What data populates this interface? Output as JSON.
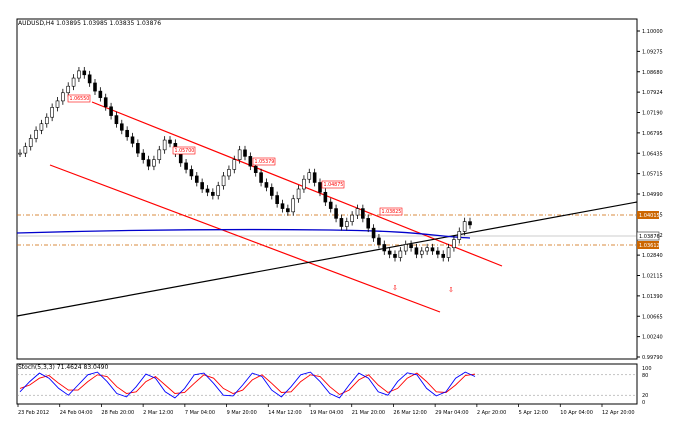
{
  "header": {
    "symbol_line": "AUDUSD,H4 1.03895 1.03985 1.03835 1.03876"
  },
  "colors": {
    "background": "#ffffff",
    "frame": "#000000",
    "channel": "#ff0000",
    "trendline": "#000000",
    "moving_average": "#0000cc",
    "level_line": "#cc6600",
    "candle_bull": "#ffffff",
    "candle_bear": "#000000",
    "stoch_main": "#0000ff",
    "stoch_signal": "#ff0000",
    "label_border": "#ff0000",
    "current_price_bg": "#cc6600"
  },
  "price_axis": {
    "ticks": [
      "1.10000",
      "1.09275",
      "1.08680",
      "1.07924",
      "1.07190",
      "1.06795",
      "1.06435",
      "1.05715",
      "1.04990",
      "1.04265",
      "1.03542",
      "1.02840",
      "1.02115",
      "1.01390",
      "1.00665",
      "1.00240",
      "0.99790"
    ],
    "highlighted": [
      "1.04015",
      "1.03876",
      "1.03612"
    ]
  },
  "annotations": [
    {
      "price_label": "1.06550"
    },
    {
      "price_label": "1.05700"
    },
    {
      "price_label": "1.05379"
    },
    {
      "price_label": "1.04875"
    },
    {
      "price_label": "1.03825"
    }
  ],
  "arrows": [
    {
      "glyph": "⇩"
    },
    {
      "glyph": "⇩"
    }
  ],
  "oscillator": {
    "label": "Stoch(5,3,3) 71.4624 83.0490",
    "levels": [
      "100",
      "80",
      "20",
      "0"
    ]
  },
  "time_axis": {
    "ticks": [
      "23 Feb 2012",
      "24 Feb 04:00",
      "28 Feb 20:00",
      "2 Mar 12:00",
      "7 Mar 04:00",
      "9 Mar 20:00",
      "14 Mar 12:00",
      "19 Mar 04:00",
      "21 Mar 20:00",
      "26 Mar 12:00",
      "29 Mar 04:00",
      "2 Apr 20:00",
      "5 Apr 12:00",
      "10 Apr 04:00",
      "12 Apr 20:00"
    ]
  },
  "chart_data": {
    "type": "candlestick",
    "symbol": "AUDUSD",
    "timeframe": "H4",
    "ylim": [
      0.9979,
      1.1021
    ],
    "close_trace": [
      1.061,
      1.063,
      1.0655,
      1.068,
      1.07,
      1.072,
      1.075,
      1.077,
      1.0795,
      1.0815,
      1.084,
      1.0862,
      1.085,
      1.0825,
      1.08,
      1.078,
      1.0752,
      1.0725,
      1.07,
      1.068,
      1.066,
      1.064,
      1.061,
      1.059,
      1.057,
      1.059,
      1.062,
      1.065,
      1.064,
      1.061,
      1.058,
      1.056,
      1.054,
      1.052,
      1.05,
      1.049,
      1.048,
      1.051,
      1.054,
      1.056,
      1.059,
      1.062,
      1.06,
      1.057,
      1.055,
      1.052,
      1.0505,
      1.048,
      1.0455,
      1.044,
      1.043,
      1.047,
      1.05,
      1.053,
      1.055,
      1.052,
      1.049,
      1.046,
      1.044,
      1.041,
      1.0385,
      1.04,
      1.042,
      1.044,
      1.041,
      1.038,
      1.035,
      1.033,
      1.031,
      1.03,
      1.029,
      1.031,
      1.033,
      1.032,
      1.03,
      1.031,
      1.032,
      1.031,
      1.03,
      1.029,
      1.032,
      1.0345,
      1.037,
      1.04,
      1.039
    ],
    "stochastic": {
      "main": [
        30,
        60,
        85,
        70,
        40,
        20,
        50,
        80,
        88,
        60,
        25,
        15,
        45,
        82,
        70,
        30,
        12,
        40,
        80,
        85,
        55,
        20,
        18,
        50,
        85,
        75,
        35,
        15,
        45,
        80,
        88,
        60,
        25,
        12,
        50,
        85,
        70,
        30,
        20,
        60,
        86,
        80,
        40,
        18,
        30,
        70,
        88,
        75
      ],
      "signal": [
        40,
        50,
        70,
        78,
        55,
        35,
        35,
        60,
        80,
        75,
        45,
        25,
        30,
        60,
        75,
        50,
        25,
        28,
        55,
        80,
        70,
        40,
        25,
        35,
        65,
        80,
        55,
        28,
        30,
        60,
        80,
        75,
        45,
        22,
        35,
        65,
        80,
        50,
        28,
        40,
        70,
        85,
        60,
        30,
        28,
        50,
        78,
        82
      ],
      "current": [
        71.4624,
        83.049
      ]
    }
  }
}
